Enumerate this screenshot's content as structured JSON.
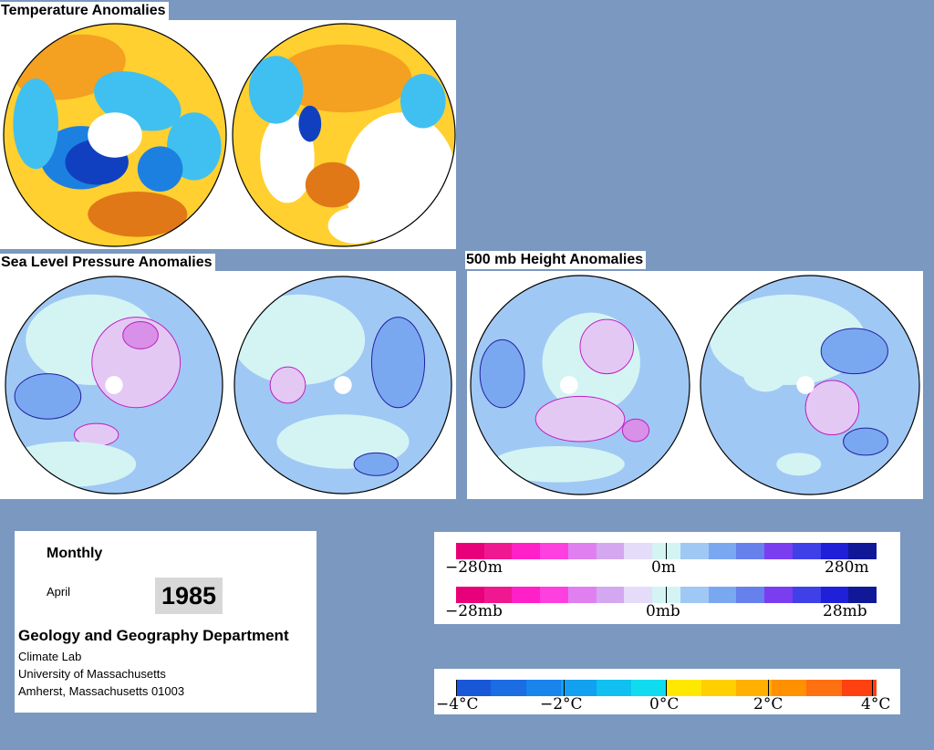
{
  "titles": {
    "temperature": "Temperature Anomalies",
    "slp": "Sea Level Pressure Anomalies",
    "height500": "500 mb Height Anomalies"
  },
  "info": {
    "period": "Monthly",
    "month": "April",
    "year": "1985",
    "department": "Geology and Geography Department",
    "lab": "Climate Lab",
    "university": "University of Massachusetts",
    "address": "Amherst, Massachusetts 01003"
  },
  "legends": {
    "height": {
      "labels": [
        "−280m",
        "0m",
        "280m"
      ]
    },
    "pressure": {
      "labels": [
        "−28mb",
        "0mb",
        "28mb"
      ]
    },
    "temperature": {
      "labels": [
        "−4°C",
        "−2°C",
        "0°C",
        "2°C",
        "4°C"
      ]
    }
  },
  "colors": {
    "background": "#7a98c0",
    "anomaly_scale": [
      "#e8007a",
      "#f01890",
      "#ff20c8",
      "#ff40e0",
      "#e080f0",
      "#d4a8f0",
      "#e4dcf8",
      "#d4f4f4",
      "#a0c8f4",
      "#7aa8f0",
      "#6680ec",
      "#7a3ef0",
      "#4040e8",
      "#2020d8",
      "#101898"
    ],
    "temperature_scale": [
      "#1858d8",
      "#1c6ce4",
      "#1884ec",
      "#12a0f0",
      "#10c0f0",
      "#10dcf0",
      "#ffe800",
      "#ffd000",
      "#ffb000",
      "#ff9000",
      "#ff7010",
      "#ff4010"
    ]
  }
}
